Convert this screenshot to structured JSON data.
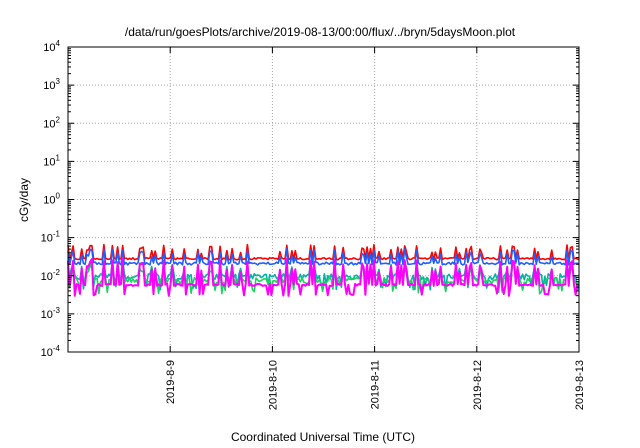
{
  "chart_data": {
    "type": "line",
    "title": "/data/run/goesPlots/archive/2019-08-13/00:00/flux/../bryn/5daysMoon.plot",
    "xlabel": "Coordinated Universal Time (UTC)",
    "ylabel": "cGy/day",
    "y_scale": "log",
    "ylim": [
      0.0001,
      10000
    ],
    "y_ticks": [
      {
        "value": 0.0001,
        "base": "10",
        "exp": "-4"
      },
      {
        "value": 0.001,
        "base": "10",
        "exp": "-3"
      },
      {
        "value": 0.01,
        "base": "10",
        "exp": "-2"
      },
      {
        "value": 0.1,
        "base": "10",
        "exp": "-1"
      },
      {
        "value": 1,
        "base": "10",
        "exp": "0"
      },
      {
        "value": 10,
        "base": "10",
        "exp": "1"
      },
      {
        "value": 100,
        "base": "10",
        "exp": "2"
      },
      {
        "value": 1000,
        "base": "10",
        "exp": "3"
      },
      {
        "value": 10000,
        "base": "10",
        "exp": "4"
      }
    ],
    "xlim": [
      "2019-08-08",
      "2019-08-13"
    ],
    "x_ticks": [
      "2019-8-9",
      "2019-8-10",
      "2019-8-11",
      "2019-8-12",
      "2019-8-13"
    ],
    "grid": true,
    "series": [
      {
        "color": "#ff0000",
        "base": 0.028,
        "amp": 0.0035
      },
      {
        "color": "#1f5fff",
        "base": 0.021,
        "amp": 0.0035
      },
      {
        "color": "#00b3a4",
        "base": 0.0095,
        "amp": 0.0035
      },
      {
        "color": "#1fd060",
        "base": 0.0075,
        "amp": 0.003
      },
      {
        "color": "#ff00ff",
        "base": 0.0058,
        "amp": 0.0008
      }
    ]
  }
}
